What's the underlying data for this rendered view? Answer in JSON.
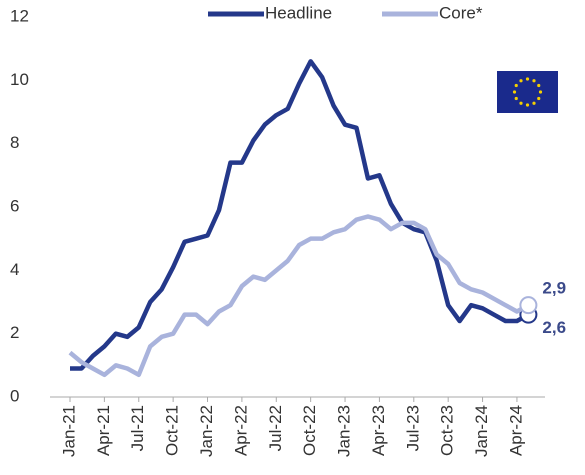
{
  "chart_data": {
    "type": "line",
    "categories": [
      "Jan-21",
      null,
      null,
      "Apr-21",
      null,
      null,
      "Jul-21",
      null,
      null,
      "Oct-21",
      null,
      null,
      "Jan-22",
      null,
      null,
      "Apr-22",
      null,
      null,
      "Jul-22",
      null,
      null,
      "Oct-22",
      null,
      null,
      "Jan-23",
      null,
      null,
      "Apr-23",
      null,
      null,
      "Jul-23",
      null,
      null,
      "Oct-23",
      null,
      null,
      "Jan-24",
      null,
      null,
      "Apr-24",
      null
    ],
    "series": [
      {
        "name": "Headline",
        "color": "#24388a",
        "values": [
          0.9,
          0.9,
          1.3,
          1.6,
          2.0,
          1.9,
          2.2,
          3.0,
          3.4,
          4.1,
          4.9,
          5.0,
          5.1,
          5.9,
          7.4,
          7.4,
          8.1,
          8.6,
          8.9,
          9.1,
          9.9,
          10.6,
          10.1,
          9.2,
          8.6,
          8.5,
          6.9,
          7.0,
          6.1,
          5.5,
          5.3,
          5.2,
          4.3,
          2.9,
          2.4,
          2.9,
          2.8,
          2.6,
          2.4,
          2.4,
          2.6
        ],
        "value_labels": [
          null,
          null,
          null,
          null,
          null,
          null,
          null,
          null,
          null,
          null,
          null,
          null,
          null,
          null,
          null,
          null,
          null,
          null,
          null,
          null,
          null,
          null,
          null,
          null,
          null,
          null,
          null,
          null,
          null,
          null,
          null,
          null,
          null,
          null,
          null,
          null,
          null,
          null,
          null,
          null,
          "2,6"
        ]
      },
      {
        "name": "Core*",
        "color": "#a9b3dc",
        "values": [
          1.4,
          1.1,
          0.9,
          0.7,
          1.0,
          0.9,
          0.7,
          1.6,
          1.9,
          2.0,
          2.6,
          2.6,
          2.3,
          2.7,
          2.9,
          3.5,
          3.8,
          3.7,
          4.0,
          4.3,
          4.8,
          5.0,
          5.0,
          5.2,
          5.3,
          5.6,
          5.7,
          5.6,
          5.3,
          5.5,
          5.5,
          5.3,
          4.5,
          4.2,
          3.6,
          3.4,
          3.3,
          3.1,
          2.9,
          2.7,
          2.9
        ],
        "value_labels": [
          null,
          null,
          null,
          null,
          null,
          null,
          null,
          null,
          null,
          null,
          null,
          null,
          null,
          null,
          null,
          null,
          null,
          null,
          null,
          null,
          null,
          null,
          null,
          null,
          null,
          null,
          null,
          null,
          null,
          null,
          null,
          null,
          null,
          null,
          null,
          null,
          null,
          null,
          null,
          null,
          "2,9"
        ]
      }
    ],
    "ylim": [
      0,
      12
    ],
    "yticks": [
      0,
      2,
      4,
      6,
      8,
      10,
      12
    ],
    "grid": false,
    "legend": "top"
  }
}
